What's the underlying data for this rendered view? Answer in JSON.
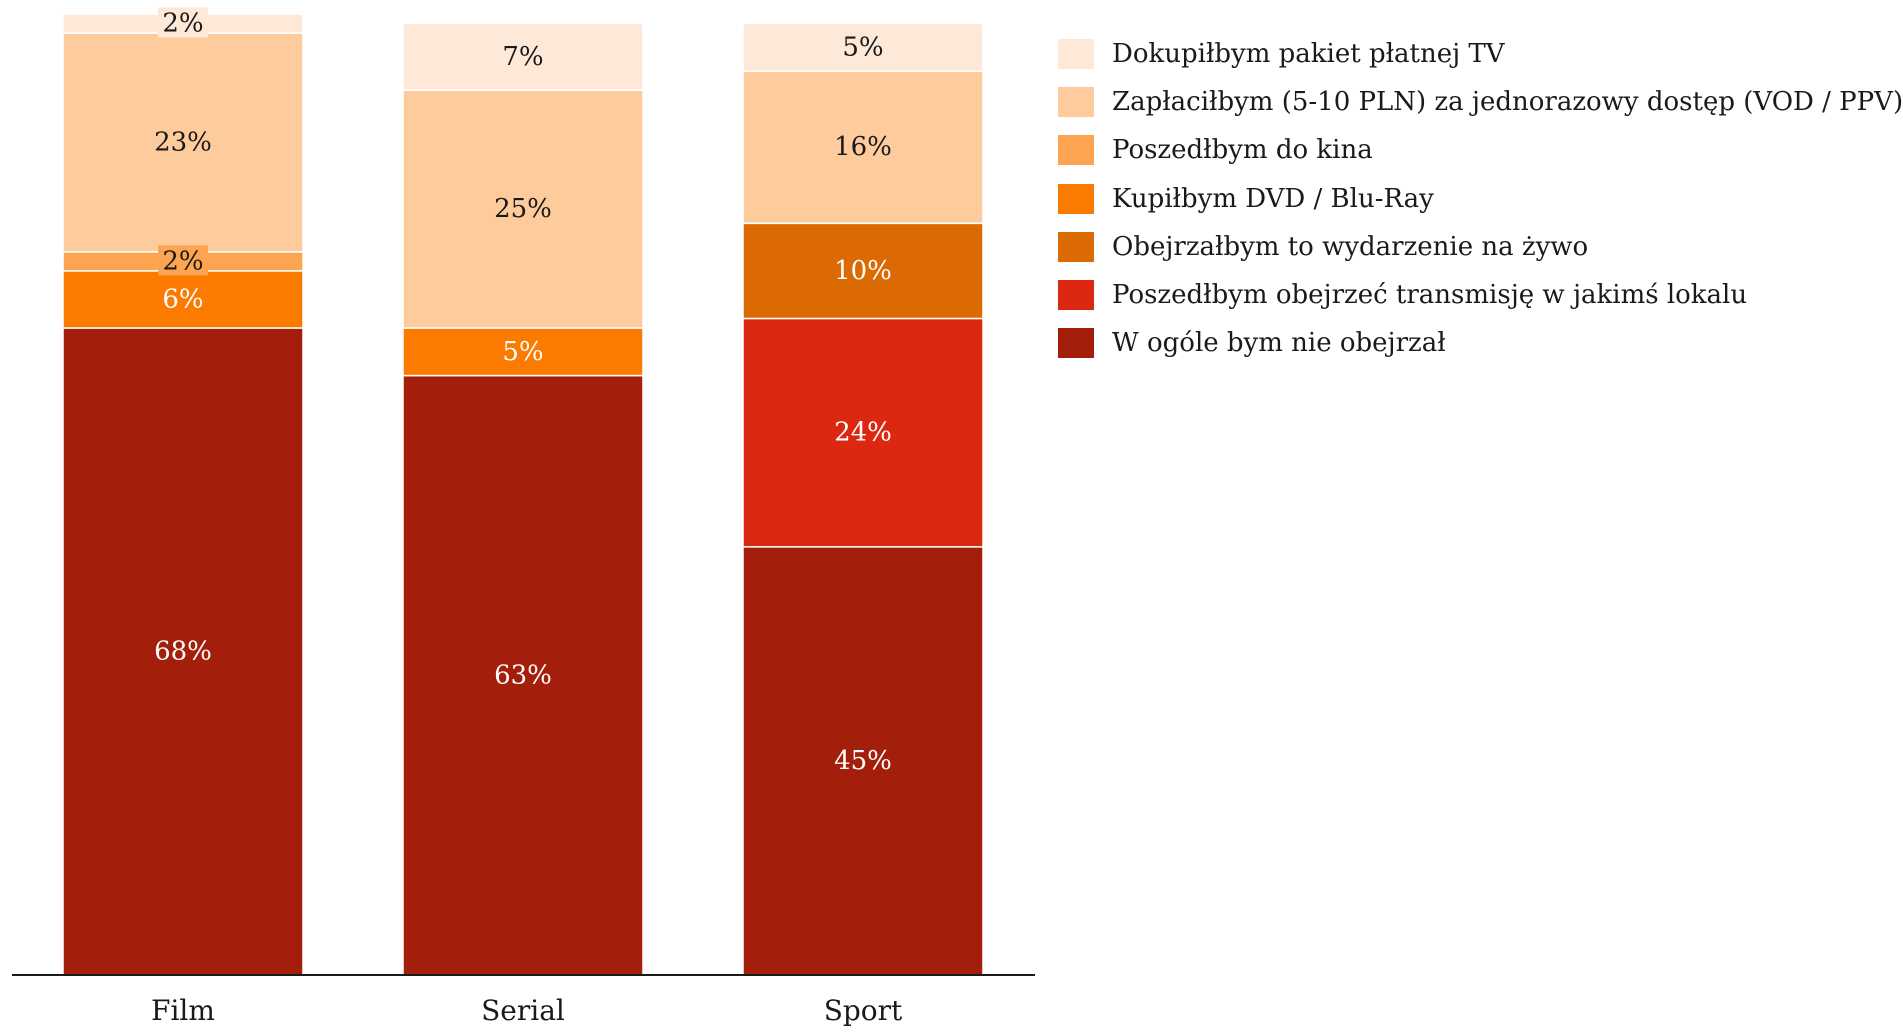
{
  "chart_data": {
    "type": "bar",
    "stacked": true,
    "categories": [
      "Film",
      "Serial",
      "Sport"
    ],
    "series": [
      {
        "name": "W ogóle bym nie obejrzał",
        "color": "#a31f0b",
        "label_color": "#ffffff",
        "values": [
          68,
          63,
          45
        ],
        "labels": [
          "68%",
          "63%",
          "45%"
        ]
      },
      {
        "name": "Poszedłbym obejrzeć transmisję w jakimś lokalu",
        "color": "#dc2810",
        "label_color": "#ffffff",
        "values": [
          0,
          0,
          24
        ],
        "labels": [
          "",
          "",
          "24%"
        ]
      },
      {
        "name": "Obejrzałbym to wydarzenie na żywo",
        "color": "#dc6a03",
        "label_color": "#ffffff",
        "values": [
          0,
          0,
          10
        ],
        "labels": [
          "",
          "",
          "10%"
        ]
      },
      {
        "name": "Kupiłbym DVD / Blu-Ray",
        "color": "#fb7a00",
        "label_color": "#ffffff",
        "values": [
          6,
          5,
          0
        ],
        "labels": [
          "6%",
          "5%",
          ""
        ]
      },
      {
        "name": "Poszedłbym do kina",
        "color": "#fda450",
        "label_color": "#1a1a1a",
        "values": [
          2,
          0,
          0
        ],
        "labels": [
          "2%",
          "",
          ""
        ]
      },
      {
        "name": "Zapłaciłbym (5-10 PLN) za jednorazowy dostęp (VOD / PPV)",
        "color": "#fecb9c",
        "label_color": "#1a1a1a",
        "values": [
          23,
          25,
          16
        ],
        "labels": [
          "23%",
          "25%",
          "16%"
        ]
      },
      {
        "name": "Dokupiłbym pakiet płatnej TV",
        "color": "#fee8d8",
        "label_color": "#1a1a1a",
        "values": [
          2,
          7,
          5
        ],
        "labels": [
          "2%",
          "7%",
          "5%"
        ]
      }
    ],
    "legend_order": [
      6,
      5,
      4,
      3,
      2,
      1,
      0
    ],
    "legend_position": "right",
    "ylim": [
      0,
      101
    ],
    "grid": false,
    "xlabel": "",
    "ylabel": ""
  }
}
